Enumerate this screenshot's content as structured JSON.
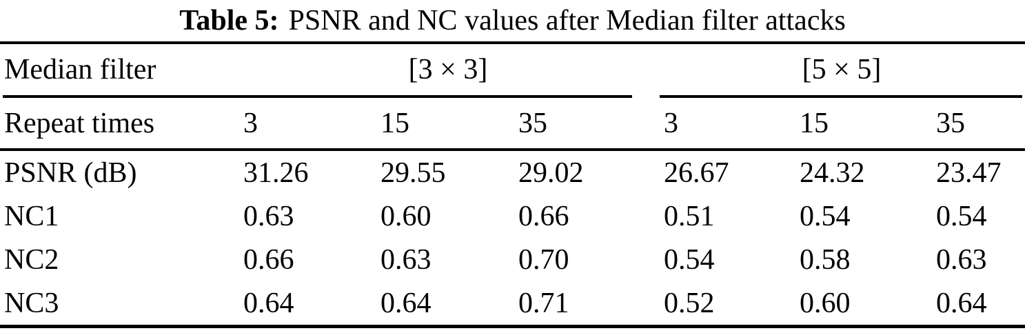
{
  "title": {
    "label": "Table 5:",
    "text": "PSNR and NC values after Median filter attacks"
  },
  "table": {
    "group_header": {
      "row_label": "Median filter",
      "groups": [
        "[3 × 3]",
        "[5 × 5]"
      ]
    },
    "sub_header": {
      "row_label": "Repeat times",
      "cols": [
        "3",
        "15",
        "35",
        "3",
        "15",
        "35"
      ]
    },
    "rows": [
      {
        "label": "PSNR (dB)",
        "values": [
          "31.26",
          "29.55",
          "29.02",
          "26.67",
          "24.32",
          "23.47"
        ]
      },
      {
        "label": "NC1",
        "values": [
          "0.63",
          "0.60",
          "0.66",
          "0.51",
          "0.54",
          "0.54"
        ]
      },
      {
        "label": "NC2",
        "values": [
          "0.66",
          "0.63",
          "0.70",
          "0.54",
          "0.58",
          "0.63"
        ]
      },
      {
        "label": "NC3",
        "values": [
          "0.64",
          "0.64",
          "0.71",
          "0.52",
          "0.60",
          "0.64"
        ]
      }
    ]
  }
}
